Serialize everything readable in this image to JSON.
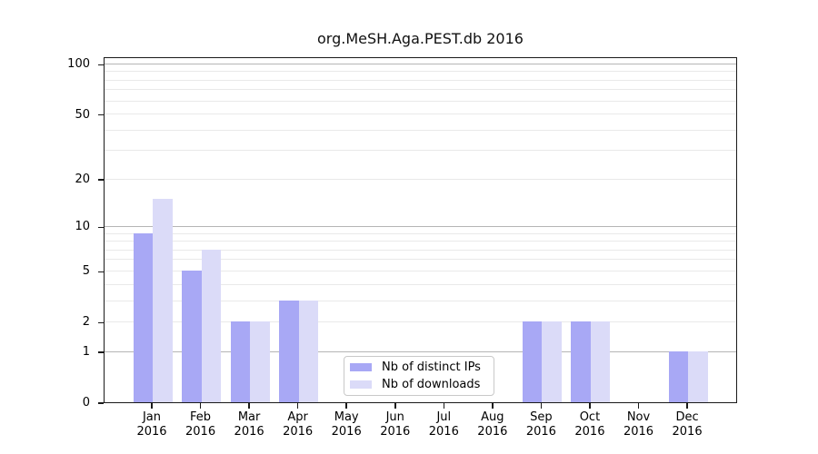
{
  "title": "org.MeSH.Aga.PEST.db 2016",
  "colors": {
    "bar_distinct_ips": "#a8a8f5",
    "bar_downloads": "#dbdbf8",
    "grid_minor": "#e9e9e9",
    "grid_major": "#b5b5b5",
    "axis": "#1a1a1a",
    "legend_border": "#c9c9c9",
    "background": "#ffffff"
  },
  "chart_data": {
    "type": "bar",
    "title": "org.MeSH.Aga.PEST.db 2016",
    "categories": [
      "Jan",
      "Feb",
      "Mar",
      "Apr",
      "May",
      "Jun",
      "Jul",
      "Aug",
      "Sep",
      "Oct",
      "Nov",
      "Dec"
    ],
    "category_year": "2016",
    "series": [
      {
        "name": "Nb of distinct IPs",
        "color": "#a8a8f5",
        "values": [
          9,
          5,
          2,
          3,
          0,
          0,
          0,
          0,
          2,
          2,
          0,
          1
        ]
      },
      {
        "name": "Nb of downloads",
        "color": "#dbdbf8",
        "values": [
          15,
          7,
          2,
          3,
          0,
          0,
          0,
          0,
          2,
          2,
          0,
          1
        ]
      }
    ],
    "xlabel": "",
    "ylabel": "",
    "y_axis": {
      "scale": "log1p",
      "range": [
        0,
        111
      ],
      "tick_values": [
        100,
        50,
        20,
        10,
        5,
        2,
        1,
        0
      ],
      "gridline_values": [
        1,
        2,
        3,
        4,
        5,
        6,
        7,
        8,
        9,
        10,
        20,
        30,
        40,
        50,
        60,
        70,
        80,
        90,
        100
      ],
      "major_gridline_values": [
        1,
        10,
        100
      ]
    },
    "grid": "horizontal",
    "legend_position": "bottom-center"
  },
  "legend": {
    "items": [
      {
        "label": "Nb of distinct IPs"
      },
      {
        "label": "Nb of downloads"
      }
    ]
  }
}
